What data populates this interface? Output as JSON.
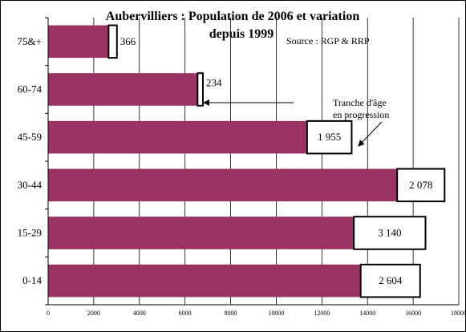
{
  "chart_data": {
    "type": "bar",
    "orientation": "horizontal",
    "title_line1": "Aubervilliers : Population de 2006 et variation",
    "title_line2": "depuis 1999",
    "source": "Source : RGP  & RRP",
    "categories": [
      "75&+",
      "60-74",
      "45-59",
      "30-44",
      "15-29",
      "0-14"
    ],
    "series": [
      {
        "values": [
          2650,
          6550,
          11350,
          15300,
          13400,
          13700
        ]
      },
      {
        "values": [
          366,
          234,
          1955,
          2078,
          3140,
          2604
        ]
      }
    ],
    "data_labels": [
      "366",
      "234",
      "1 955",
      "2 078",
      "3 140",
      "2 604"
    ],
    "xlim": [
      0,
      18000
    ],
    "xticks": [
      "0",
      "2000",
      "4000",
      "6000",
      "8000",
      "10000",
      "12000",
      "14000",
      "16000",
      "18000"
    ],
    "grid": true,
    "annotation": {
      "line1": "Tranche d'âge",
      "line2": "en progression"
    },
    "colors": {
      "bar": "#993366",
      "variation": "#ffffff",
      "grid": "#000000",
      "border": "#000000"
    }
  }
}
